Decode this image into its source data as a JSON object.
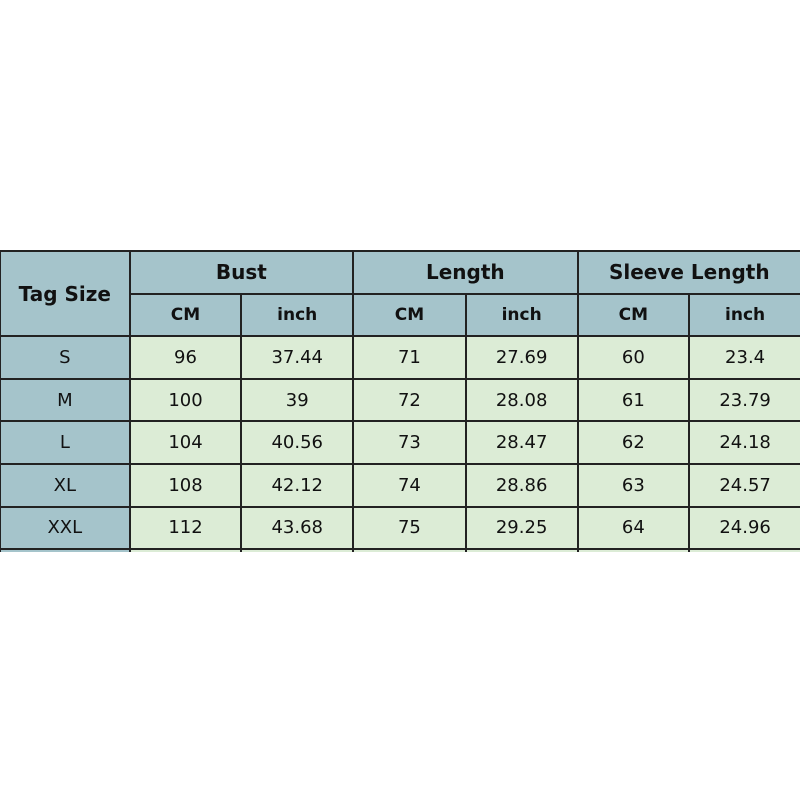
{
  "table": {
    "corner": "Tag Size",
    "groups": [
      "Bust",
      "Length",
      "Sleeve Length"
    ],
    "units": [
      "CM",
      "inch",
      "CM",
      "inch",
      "CM",
      "inch"
    ],
    "rows": [
      [
        "S",
        "96",
        "37.44",
        "71",
        "27.69",
        "60",
        "23.4"
      ],
      [
        "M",
        "100",
        "39",
        "72",
        "28.08",
        "61",
        "23.79"
      ],
      [
        "L",
        "104",
        "40.56",
        "73",
        "28.47",
        "62",
        "24.18"
      ],
      [
        "XL",
        "108",
        "42.12",
        "74",
        "28.86",
        "63",
        "24.57"
      ],
      [
        "XXL",
        "112",
        "43.68",
        "75",
        "29.25",
        "64",
        "24.96"
      ]
    ]
  },
  "colors": {
    "header": "#a5c4cb",
    "cell": "#dcecd6",
    "border": "#222222"
  }
}
